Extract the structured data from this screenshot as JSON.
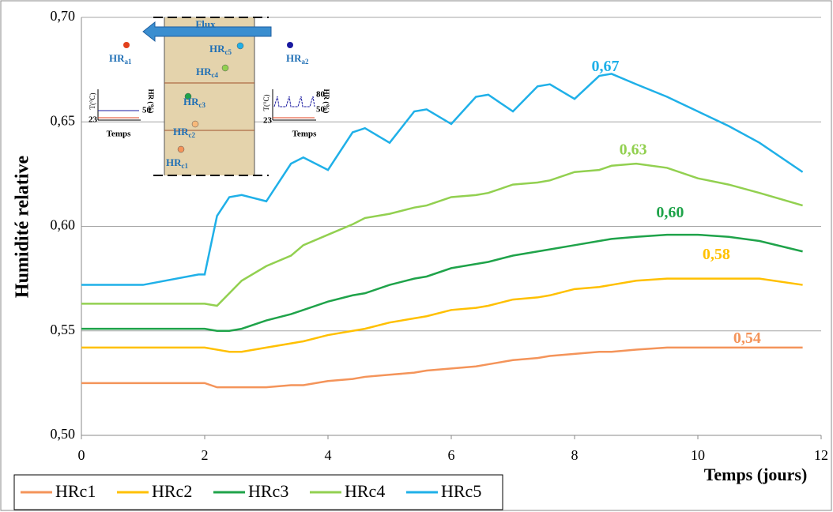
{
  "chart_data": {
    "type": "line",
    "y_label": "Humidité  relative",
    "x_label": "Temps (jours)",
    "x": [
      0,
      1,
      1.9,
      2,
      2.2,
      2.4,
      2.6,
      3,
      3.4,
      3.6,
      4,
      4.4,
      4.6,
      5,
      5.4,
      5.6,
      6,
      6.4,
      6.6,
      7,
      7.4,
      7.6,
      8,
      8.4,
      8.6,
      9,
      9.5,
      10,
      10.5,
      11,
      11.7
    ],
    "series": [
      {
        "name": "HRc1",
        "color": "#f4945a",
        "values": [
          0.525,
          0.525,
          0.525,
          0.525,
          0.523,
          0.523,
          0.523,
          0.523,
          0.524,
          0.524,
          0.526,
          0.527,
          0.528,
          0.529,
          0.53,
          0.531,
          0.532,
          0.533,
          0.534,
          0.536,
          0.537,
          0.538,
          0.539,
          0.54,
          0.54,
          0.541,
          0.542,
          0.542,
          0.542,
          0.542,
          0.542
        ],
        "peak_label": {
          "x": 10.8,
          "value": 0.54,
          "label": "0,54"
        }
      },
      {
        "name": "HRc2",
        "color": "#ffc000",
        "values": [
          0.542,
          0.542,
          0.542,
          0.542,
          0.541,
          0.54,
          0.54,
          0.542,
          0.544,
          0.545,
          0.548,
          0.55,
          0.551,
          0.554,
          0.556,
          0.557,
          0.56,
          0.561,
          0.562,
          0.565,
          0.566,
          0.567,
          0.57,
          0.571,
          0.572,
          0.574,
          0.575,
          0.575,
          0.575,
          0.575,
          0.572
        ],
        "peak_label": {
          "x": 10.3,
          "value": 0.58,
          "label": "0,58"
        }
      },
      {
        "name": "HRc3",
        "color": "#1fa34a",
        "values": [
          0.551,
          0.551,
          0.551,
          0.551,
          0.55,
          0.55,
          0.551,
          0.555,
          0.558,
          0.56,
          0.564,
          0.567,
          0.568,
          0.572,
          0.575,
          0.576,
          0.58,
          0.582,
          0.583,
          0.586,
          0.588,
          0.589,
          0.591,
          0.593,
          0.594,
          0.595,
          0.596,
          0.596,
          0.595,
          0.593,
          0.588
        ],
        "peak_label": {
          "x": 9.55,
          "value": 0.6,
          "label": "0,60"
        }
      },
      {
        "name": "HRc4",
        "color": "#92d050",
        "values": [
          0.563,
          0.563,
          0.563,
          0.563,
          0.562,
          0.568,
          0.574,
          0.581,
          0.586,
          0.591,
          0.596,
          0.601,
          0.604,
          0.606,
          0.609,
          0.61,
          0.614,
          0.615,
          0.616,
          0.62,
          0.621,
          0.622,
          0.626,
          0.627,
          0.629,
          0.63,
          0.628,
          0.623,
          0.62,
          0.616,
          0.61
        ],
        "peak_label": {
          "x": 8.95,
          "value": 0.63,
          "label": "0,63"
        }
      },
      {
        "name": "HRc5",
        "color": "#1fb0e8",
        "values": [
          0.572,
          0.572,
          0.577,
          0.577,
          0.605,
          0.614,
          0.615,
          0.612,
          0.63,
          0.633,
          0.627,
          0.645,
          0.647,
          0.64,
          0.655,
          0.656,
          0.649,
          0.662,
          0.663,
          0.655,
          0.667,
          0.668,
          0.661,
          0.672,
          0.673,
          0.668,
          0.662,
          0.655,
          0.648,
          0.64,
          0.626
        ],
        "peak_label": {
          "x": 8.5,
          "value": 0.67,
          "label": "0,67"
        }
      }
    ],
    "xlim": [
      0,
      12
    ],
    "xticks": [
      0,
      2,
      4,
      6,
      8,
      10,
      12
    ],
    "ylim": [
      0.5,
      0.7
    ],
    "yticks": [
      {
        "value": 0.5,
        "label": "0,50"
      },
      {
        "value": 0.55,
        "label": "0,55"
      },
      {
        "value": 0.6,
        "label": "0,60"
      },
      {
        "value": 0.65,
        "label": "0,65"
      },
      {
        "value": 0.7,
        "label": "0,70"
      }
    ],
    "grid": true,
    "legend": "bottom-left",
    "inset": {
      "flux": "Flux",
      "sensors": [
        {
          "name": "HR",
          "sub": "a1"
        },
        {
          "name": "HR",
          "sub": "a2"
        },
        {
          "name": "HR",
          "sub": "c1"
        },
        {
          "name": "HR",
          "sub": "c2"
        },
        {
          "name": "HR",
          "sub": "c3"
        },
        {
          "name": "HR",
          "sub": "c4"
        },
        {
          "name": "HR",
          "sub": "c5"
        }
      ],
      "left_graph": {
        "t_axis": "T(°C)",
        "hr_axis": "HR (%)",
        "hr": "50",
        "t": "23",
        "time": "Temps"
      },
      "right_graph": {
        "t_axis": "T(°C)",
        "hr_axis": "HR (%)",
        "hr_high": "80",
        "hr": "50",
        "t": "23",
        "time": "Temps"
      }
    }
  }
}
